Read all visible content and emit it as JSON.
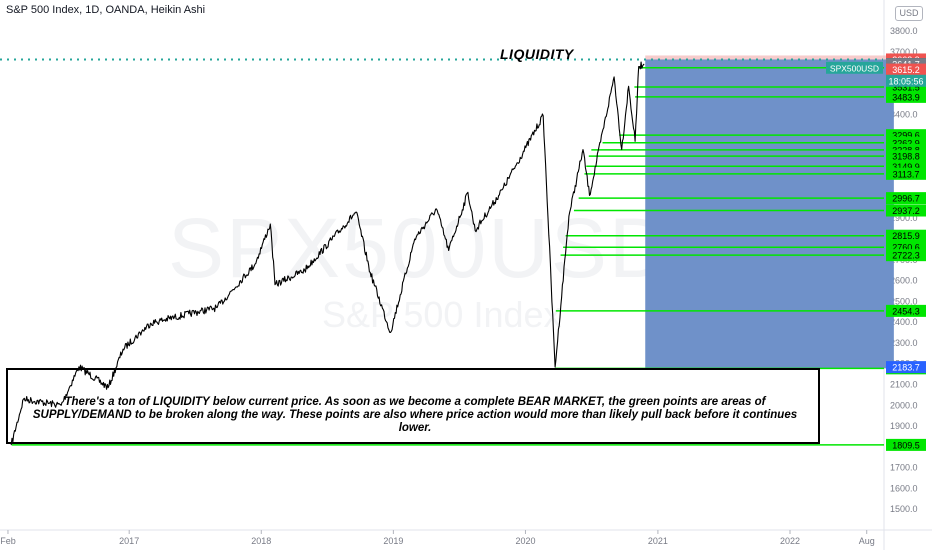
{
  "header": {
    "title": "S&P 500 Index, 1D, OANDA, Heikin Ashi",
    "currency_badge": "USD"
  },
  "watermark": {
    "symbol": "SPX500USD",
    "name": "S&P 500 Index"
  },
  "annotation": {
    "heading": "LIQUIDITY",
    "note": "There's a ton of LIQUIDITY below current price. As soon as we become a complete BEAR MARKET, the green points are areas of SUPPLY/DEMAND to be broken along the way. These points are also where price action would more than likely pull back before it continues lower."
  },
  "colors": {
    "level_green": "#00e600",
    "box_blue": "#6f91c9",
    "price_red": "#ef5350",
    "price_black": "#131722",
    "price_gray": "#787b86",
    "symbol_teal": "#26a69a",
    "low_blue": "#2962ff",
    "dotted_teal": "#26a69a"
  },
  "chart_data": {
    "type": "line",
    "style": "heikin-ashi",
    "series": [
      {
        "x": [
          "2016-02-10",
          "2016-03-15",
          "2016-06-27",
          "2016-08-15",
          "2016-11-04",
          "2016-12-15",
          "2017-03-01",
          "2017-06-15",
          "2017-09-01",
          "2017-12-15",
          "2018-01-26",
          "2018-02-08",
          "2018-05-01",
          "2018-09-20",
          "2018-10-29",
          "2018-12-24",
          "2019-03-01",
          "2019-04-30",
          "2019-06-03",
          "2019-07-26",
          "2019-08-15",
          "2019-10-30",
          "2020-01-02",
          "2020-02-19",
          "2020-03-23",
          "2020-04-30",
          "2020-06-08",
          "2020-06-26",
          "2020-09-02",
          "2020-09-23",
          "2020-10-12",
          "2020-10-30",
          "2020-11-09",
          "2020-11-24"
        ],
        "values": [
          1809.5,
          2030,
          2000,
          2185,
          2085,
          2270,
          2395,
          2440,
          2470,
          2680,
          2872,
          2580,
          2650,
          2930,
          2640,
          2350,
          2800,
          2945,
          2745,
          3025,
          2840,
          3040,
          3240,
          3393,
          2183.7,
          2910,
          3230,
          3010,
          3580,
          3230,
          3535,
          3270,
          3630,
          3641.9
        ]
      }
    ],
    "y_axis": {
      "range": [
        1400,
        3950
      ],
      "ticks": [
        3800.0,
        3700.0,
        3600.0,
        3500.0,
        3400.0,
        3300.0,
        3200.0,
        3100.0,
        3000.0,
        2900.0,
        2800.0,
        2700.0,
        2600.0,
        2500.0,
        2400.0,
        2300.0,
        2200.0,
        2100.0,
        2000.0,
        1900.0,
        1800.0,
        1700.0,
        1600.0,
        1500.0
      ],
      "scale": "linear"
    },
    "x_axis": {
      "range": [
        "2016-01-10",
        "2022-09-15"
      ],
      "ticks": [
        {
          "label": "Feb",
          "date": "2016-02-01"
        },
        {
          "label": "2017",
          "date": "2017-01-01"
        },
        {
          "label": "2018",
          "date": "2018-01-01"
        },
        {
          "label": "2019",
          "date": "2019-01-01"
        },
        {
          "label": "2020",
          "date": "2020-01-01"
        },
        {
          "label": "2021",
          "date": "2021-01-01"
        },
        {
          "label": "2022",
          "date": "2022-01-01"
        },
        {
          "label": "Aug",
          "date": "2022-08-01"
        }
      ]
    },
    "levels": [
      {
        "label": "3624.0",
        "value": 3624.0,
        "start": "2020-11-10"
      },
      {
        "label": "3531.5",
        "value": 3531.5,
        "start": "2020-10-28"
      },
      {
        "label": "3483.9",
        "value": 3483.9,
        "start": "2020-10-30"
      },
      {
        "label": "3299.6",
        "value": 3299.6,
        "start": "2020-09-16"
      },
      {
        "label": "3262.9",
        "value": 3262.9,
        "start": "2020-08-01"
      },
      {
        "label": "3228.8",
        "value": 3228.8,
        "start": "2020-07-01"
      },
      {
        "label": "3198.8",
        "value": 3198.8,
        "start": "2020-06-24"
      },
      {
        "label": "3149.9",
        "value": 3149.9,
        "start": "2020-06-17"
      },
      {
        "label": "3113.7",
        "value": 3113.7,
        "start": "2020-06-12"
      },
      {
        "label": "2996.7",
        "value": 2996.7,
        "start": "2020-05-27"
      },
      {
        "label": "2937.2",
        "value": 2937.2,
        "start": "2020-05-14"
      },
      {
        "label": "2815.9",
        "value": 2815.9,
        "start": "2020-04-21"
      },
      {
        "label": "2760.6",
        "value": 2760.6,
        "start": "2020-04-14"
      },
      {
        "label": "2722.3",
        "value": 2722.3,
        "start": "2020-04-07"
      },
      {
        "label": "2454.3",
        "value": 2454.3,
        "start": "2020-03-25"
      },
      {
        "label": "2177.8",
        "value": 2177.8,
        "start": "2020-03-23"
      },
      {
        "label": "1809.5",
        "value": 1809.5,
        "start": "2016-02-11"
      }
    ],
    "price_tags": [
      {
        "label": "3663.9",
        "value": 3663.9,
        "color": "#ef5350"
      },
      {
        "label": "3641.9",
        "value": 3641.9,
        "color": "#131722"
      },
      {
        "label": "3641.7",
        "value": 3641.7,
        "color": "#787b86"
      },
      {
        "label": "3615.2",
        "value": 3615.2,
        "color": "#ef5350"
      },
      {
        "label": "2183.7",
        "value": 2183.7,
        "color": "#2962ff"
      }
    ],
    "current_price": {
      "symbol": "SPX500USD",
      "countdown": "18:05:56"
    },
    "liquidity_zone": {
      "x_start": "2020-11-27",
      "x_end": "2022-10-15",
      "top": 3663.9,
      "bottom": 2177.8
    },
    "high_line": {
      "value": 3663.9,
      "style": "dotted"
    }
  }
}
